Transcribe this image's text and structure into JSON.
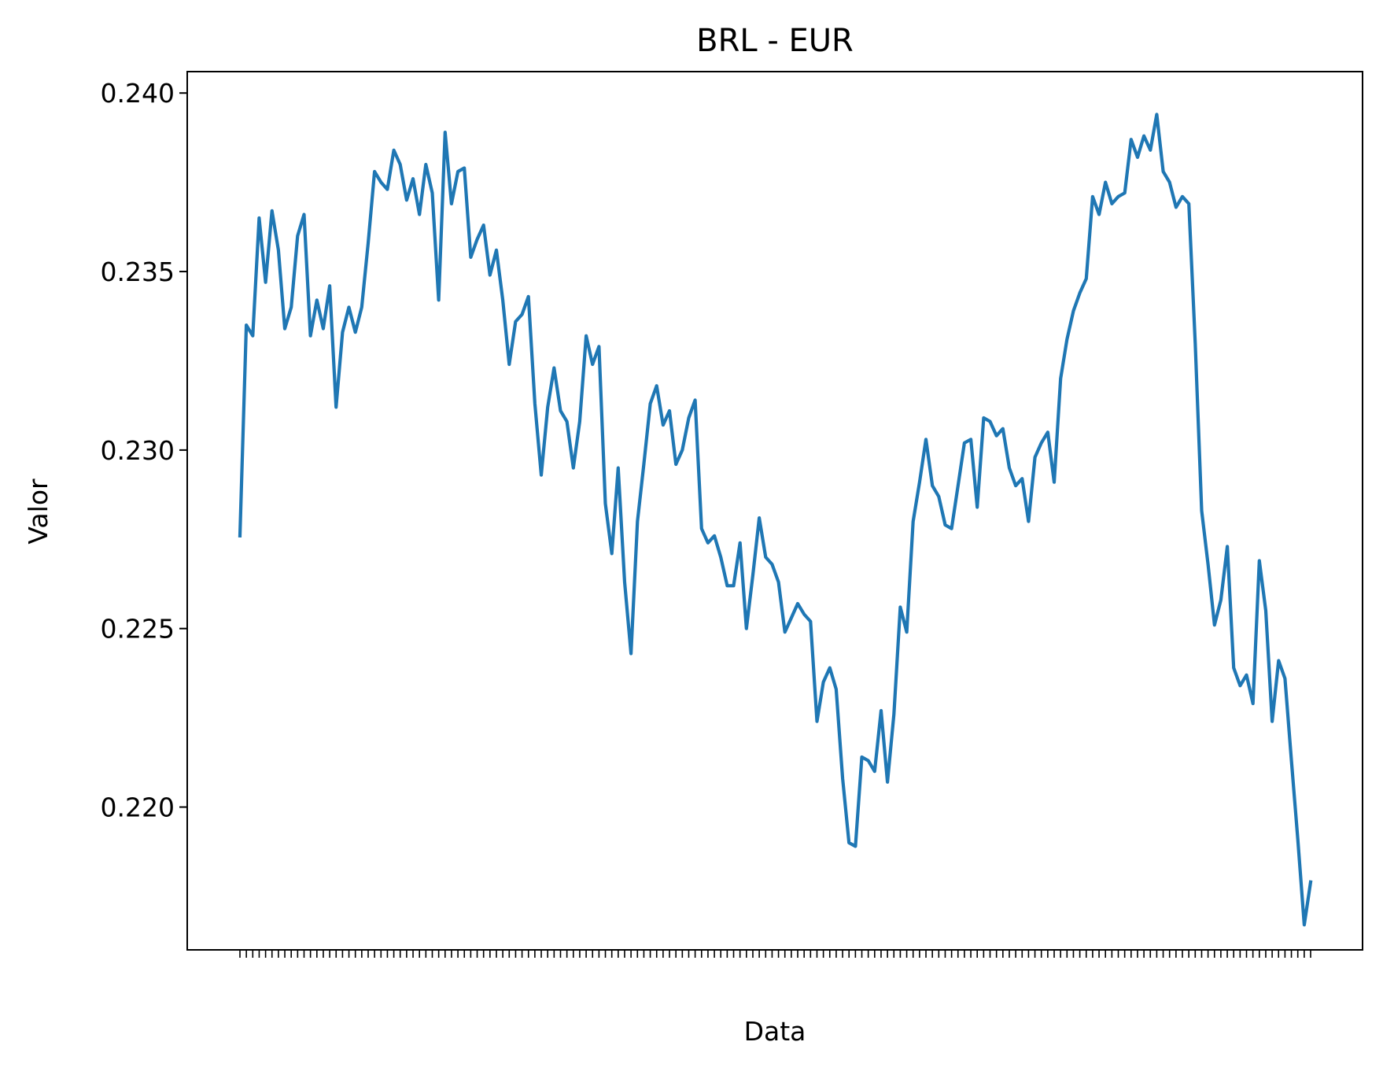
{
  "chart_data": {
    "type": "line",
    "title": "BRL - EUR",
    "xlabel": "Data",
    "ylabel": "Valor",
    "ylim": [
      0.216,
      0.2406
    ],
    "yticks": [
      0.22,
      0.225,
      0.23,
      0.235,
      0.24
    ],
    "ytick_labels": [
      "0.220",
      "0.225",
      "0.230",
      "0.235",
      "0.240"
    ],
    "grid": false,
    "series": [
      {
        "color": "#1f77b4",
        "values": [
          0.2276,
          0.2335,
          0.2332,
          0.2365,
          0.2347,
          0.2367,
          0.2356,
          0.2334,
          0.234,
          0.236,
          0.2366,
          0.2332,
          0.2342,
          0.2334,
          0.2346,
          0.2312,
          0.2333,
          0.234,
          0.2333,
          0.234,
          0.2358,
          0.2378,
          0.2375,
          0.2373,
          0.2384,
          0.238,
          0.237,
          0.2376,
          0.2366,
          0.238,
          0.2372,
          0.2342,
          0.2389,
          0.2369,
          0.2378,
          0.2379,
          0.2354,
          0.2359,
          0.2363,
          0.2349,
          0.2356,
          0.2342,
          0.2324,
          0.2336,
          0.2338,
          0.2343,
          0.2313,
          0.2293,
          0.2312,
          0.2323,
          0.2311,
          0.2308,
          0.2295,
          0.2308,
          0.2332,
          0.2324,
          0.2329,
          0.2285,
          0.2271,
          0.2295,
          0.2263,
          0.2243,
          0.228,
          0.2296,
          0.2313,
          0.2318,
          0.2307,
          0.2311,
          0.2296,
          0.23,
          0.2309,
          0.2314,
          0.2278,
          0.2274,
          0.2276,
          0.227,
          0.2262,
          0.2262,
          0.2274,
          0.225,
          0.2265,
          0.2281,
          0.227,
          0.2268,
          0.2263,
          0.2249,
          0.2253,
          0.2257,
          0.2254,
          0.2252,
          0.2224,
          0.2235,
          0.2239,
          0.2233,
          0.2208,
          0.219,
          0.2189,
          0.2214,
          0.2213,
          0.221,
          0.2227,
          0.2207,
          0.2226,
          0.2256,
          0.2249,
          0.228,
          0.2291,
          0.2303,
          0.229,
          0.2287,
          0.2279,
          0.2278,
          0.229,
          0.2302,
          0.2303,
          0.2284,
          0.2309,
          0.2308,
          0.2304,
          0.2306,
          0.2295,
          0.229,
          0.2292,
          0.228,
          0.2298,
          0.2302,
          0.2305,
          0.2291,
          0.232,
          0.2331,
          0.2339,
          0.2344,
          0.2348,
          0.2371,
          0.2366,
          0.2375,
          0.2369,
          0.2371,
          0.2372,
          0.2387,
          0.2382,
          0.2388,
          0.2384,
          0.2394,
          0.2378,
          0.2375,
          0.2368,
          0.2371,
          0.2369,
          0.233,
          0.2283,
          0.2268,
          0.2251,
          0.2258,
          0.2273,
          0.2239,
          0.2234,
          0.2237,
          0.2229,
          0.2269,
          0.2255,
          0.2224,
          0.2241,
          0.2236,
          0.2213,
          0.2191,
          0.2167,
          0.2179
        ]
      }
    ]
  }
}
